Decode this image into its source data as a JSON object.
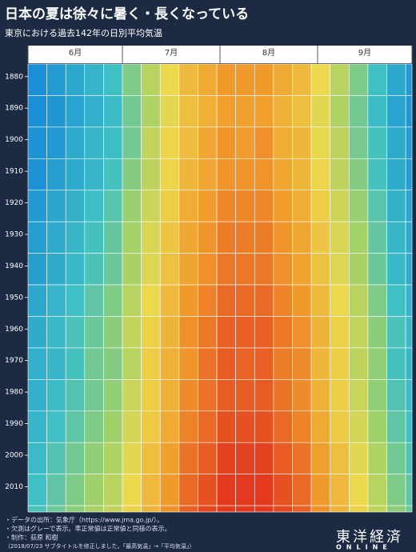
{
  "chart_data": {
    "type": "heatmap",
    "title": "日本の夏は徐々に暑く・長くなっている",
    "subtitle": "東京における過去142年の日別平均気温",
    "categories": [
      "6月",
      "7月",
      "8月",
      "9月"
    ],
    "xlim": [
      0,
      122
    ],
    "xticks": [
      0,
      30,
      61,
      92,
      122
    ],
    "ylim": [
      1876,
      2018
    ],
    "yticks": [
      1880,
      1890,
      1900,
      1910,
      1920,
      1930,
      1940,
      1950,
      1960,
      1970,
      1980,
      1990,
      2000,
      2010
    ],
    "xbins": [
      0,
      6,
      12,
      18,
      24,
      30,
      36,
      42,
      48,
      54,
      60,
      66,
      72,
      78,
      84,
      90,
      96,
      102,
      108,
      114,
      120,
      122
    ],
    "ybins": [
      1876,
      1886,
      1896,
      1906,
      1916,
      1926,
      1936,
      1946,
      1956,
      1966,
      1976,
      1986,
      1996,
      2006,
      2016,
      2018
    ],
    "values": [
      [
        19,
        19.5,
        20,
        20.5,
        21,
        22,
        23,
        24,
        25,
        25.5,
        26,
        26,
        26,
        25.5,
        25,
        24,
        23,
        22,
        21,
        20,
        19.5
      ],
      [
        18.8,
        19.3,
        19.8,
        20.3,
        20.8,
        21.8,
        22.8,
        23.8,
        24.8,
        25.3,
        25.8,
        25.8,
        25.8,
        25.3,
        24.8,
        23.8,
        22.8,
        21.8,
        20.8,
        19.8,
        19.3
      ],
      [
        19.2,
        19.4,
        20.1,
        20.6,
        20.9,
        21.8,
        23.2,
        24.1,
        24.9,
        25.6,
        26.1,
        25.9,
        26.2,
        25.4,
        25.1,
        23.9,
        23.1,
        21.9,
        21.1,
        20.1,
        19.6
      ],
      [
        19.1,
        19.6,
        20.1,
        20.6,
        21.1,
        22.1,
        23.1,
        24.1,
        25.1,
        25.6,
        26.1,
        26.1,
        26.1,
        25.6,
        25.1,
        24.1,
        23.1,
        22.1,
        21.1,
        20.1,
        19.6
      ],
      [
        19.4,
        19.9,
        20.4,
        20.9,
        21.4,
        22.4,
        23.4,
        24.4,
        25.4,
        25.9,
        26.4,
        26.4,
        26.4,
        25.9,
        25.4,
        24.4,
        23.4,
        22.4,
        21.4,
        20.4,
        19.9
      ],
      [
        19.6,
        20.1,
        20.6,
        21.1,
        21.6,
        22.6,
        23.6,
        24.6,
        25.6,
        26.1,
        26.6,
        26.6,
        26.6,
        26.1,
        25.6,
        24.6,
        23.6,
        22.6,
        21.6,
        20.6,
        20.1
      ],
      [
        19.7,
        20.2,
        20.7,
        21.2,
        21.7,
        22.7,
        23.7,
        24.7,
        25.7,
        26.2,
        26.7,
        26.7,
        26.7,
        26.2,
        25.7,
        24.7,
        23.7,
        22.7,
        21.7,
        20.7,
        20.2
      ],
      [
        20,
        20.5,
        21,
        21.5,
        22,
        23,
        24,
        25,
        26,
        26.5,
        27,
        27,
        27,
        26.5,
        26,
        25,
        24,
        23,
        22,
        21,
        20.5
      ],
      [
        20.2,
        20.7,
        21.2,
        21.7,
        22.2,
        23.2,
        24.2,
        25.2,
        26.2,
        26.7,
        27.2,
        27.2,
        27.2,
        26.7,
        26.2,
        25.2,
        24.2,
        23.2,
        22.2,
        21.2,
        20.7
      ],
      [
        20.3,
        20.6,
        21.1,
        21.8,
        22.1,
        23,
        24.4,
        25.3,
        26.1,
        26.8,
        27.3,
        27.1,
        27.2,
        26.6,
        26.3,
        25.1,
        24.3,
        23.1,
        22.3,
        21.1,
        20.6
      ],
      [
        20.3,
        20.8,
        21.3,
        21.8,
        22.3,
        23.3,
        24.3,
        25.3,
        26.3,
        26.8,
        27.3,
        27.3,
        27.3,
        26.8,
        26.3,
        25.3,
        24.3,
        23.3,
        22.3,
        21.3,
        20.8
      ],
      [
        20.5,
        21,
        21.5,
        22,
        22.5,
        23.5,
        24.5,
        25.5,
        26.5,
        27,
        27.5,
        27.5,
        27.5,
        27,
        26.5,
        25.5,
        24.5,
        23.5,
        22.5,
        21.5,
        21
      ],
      [
        20.8,
        21.3,
        21.8,
        22.3,
        22.8,
        23.8,
        24.8,
        25.8,
        26.8,
        27.3,
        27.8,
        27.8,
        27.8,
        27.3,
        26.8,
        25.8,
        24.8,
        23.8,
        22.8,
        21.8,
        21.3
      ],
      [
        21,
        21.5,
        22,
        22.5,
        23,
        24,
        25,
        26,
        27,
        27.5,
        28,
        28,
        28,
        27.5,
        27,
        26,
        25,
        24,
        23,
        22,
        21.5
      ],
      [
        21.2,
        21.7,
        22.2,
        22.7,
        23.2,
        24.2,
        25.2,
        26.2,
        27.2,
        27.7,
        28.2,
        28.2,
        28.2,
        27.7,
        27.2,
        26.2,
        25.2,
        24.2,
        23.2,
        22.2,
        21.7
      ]
    ],
    "colorscale": [
      [
        19,
        "#1a8fd6"
      ],
      [
        21,
        "#3fc0c4"
      ],
      [
        22.5,
        "#9fd06a"
      ],
      [
        24,
        "#ecd84c"
      ],
      [
        26,
        "#f09a2c"
      ],
      [
        28,
        "#e2391f"
      ]
    ]
  },
  "footer": {
    "notes": [
      "・データの出所：気象庁（https://www.jma.go.jp/）。",
      "・欠測はグレーで表示。準正常値は正常値と同様の表示。",
      "・制作：荻原 和樹",
      "（2018/07/23 サブタイトルを修正しました。「最高気温」→「平均気温」）"
    ],
    "logo": "東洋経済",
    "logo_sub": "ONLINE"
  }
}
